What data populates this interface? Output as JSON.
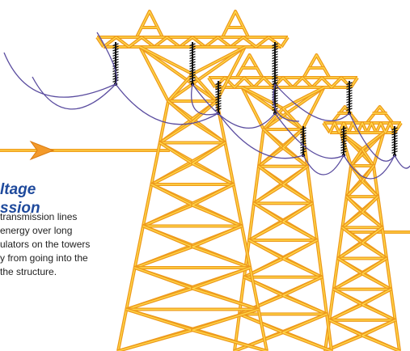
{
  "heading": {
    "lines": [
      "ltage",
      "ssion"
    ]
  },
  "body": {
    "lines": [
      "transmission lines",
      "energy over long",
      "ulators on the towers",
      "y from going into the",
      "the structure."
    ]
  }
}
